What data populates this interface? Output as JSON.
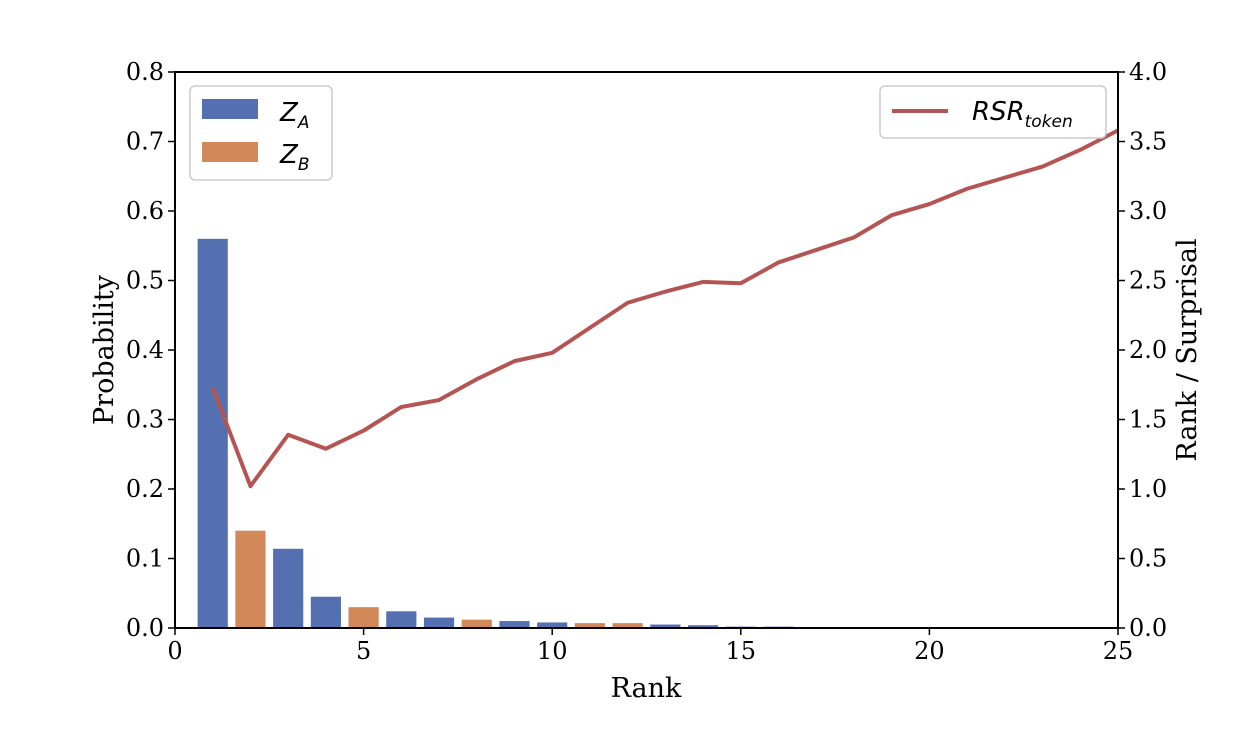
{
  "chart_data": {
    "type": "bar",
    "xlabel": "Rank",
    "ylabel_left": "Probability",
    "ylabel_right": "Rank / Surprisal",
    "xlim": [
      0,
      25
    ],
    "ylim_left": [
      0,
      0.8
    ],
    "ylim_right": [
      0,
      4.0
    ],
    "x_ticks": [
      "0",
      "5",
      "10",
      "15",
      "20",
      "25"
    ],
    "y_ticks_left": [
      "0.0",
      "0.1",
      "0.2",
      "0.3",
      "0.4",
      "0.5",
      "0.6",
      "0.7",
      "0.8"
    ],
    "y_ticks_right": [
      "0.0",
      "0.5",
      "1.0",
      "1.5",
      "2.0",
      "2.5",
      "3.0",
      "3.5",
      "4.0"
    ],
    "grid": false,
    "colors": {
      "Z_A": "#5470b0",
      "Z_B": "#d3885a",
      "RSR": "#b55553"
    },
    "bars": [
      {
        "x": 1,
        "value": 0.56,
        "group": "Z_A"
      },
      {
        "x": 2,
        "value": 0.14,
        "group": "Z_B"
      },
      {
        "x": 3,
        "value": 0.114,
        "group": "Z_A"
      },
      {
        "x": 4,
        "value": 0.045,
        "group": "Z_A"
      },
      {
        "x": 5,
        "value": 0.03,
        "group": "Z_B"
      },
      {
        "x": 6,
        "value": 0.024,
        "group": "Z_A"
      },
      {
        "x": 7,
        "value": 0.015,
        "group": "Z_A"
      },
      {
        "x": 8,
        "value": 0.012,
        "group": "Z_B"
      },
      {
        "x": 9,
        "value": 0.01,
        "group": "Z_A"
      },
      {
        "x": 10,
        "value": 0.008,
        "group": "Z_A"
      },
      {
        "x": 11,
        "value": 0.007,
        "group": "Z_B"
      },
      {
        "x": 12,
        "value": 0.007,
        "group": "Z_B"
      },
      {
        "x": 13,
        "value": 0.005,
        "group": "Z_A"
      },
      {
        "x": 14,
        "value": 0.004,
        "group": "Z_A"
      },
      {
        "x": 15,
        "value": 0.002,
        "group": "Z_A"
      },
      {
        "x": 16,
        "value": 0.002,
        "group": "Z_A"
      }
    ],
    "line": {
      "x": [
        1,
        2,
        3,
        4,
        5,
        6,
        7,
        8,
        9,
        10,
        11,
        12,
        13,
        14,
        15,
        16,
        17,
        18,
        19,
        20,
        21,
        22,
        23,
        24,
        25
      ],
      "y": [
        1.73,
        1.02,
        1.39,
        1.29,
        1.42,
        1.59,
        1.64,
        1.79,
        1.92,
        1.98,
        2.16,
        2.34,
        2.42,
        2.49,
        2.48,
        2.63,
        2.72,
        2.81,
        2.97,
        3.05,
        3.16,
        3.24,
        3.32,
        3.44,
        3.58
      ],
      "axis": "right"
    },
    "legend_left": {
      "placement": "top-left",
      "entries": [
        {
          "group": "Z_A",
          "main": "Z",
          "sub": "A"
        },
        {
          "group": "Z_B",
          "main": "Z",
          "sub": "B"
        }
      ]
    },
    "legend_right": {
      "placement": "top-right",
      "entries": [
        {
          "main": "RSR",
          "sub": "token"
        }
      ]
    }
  }
}
